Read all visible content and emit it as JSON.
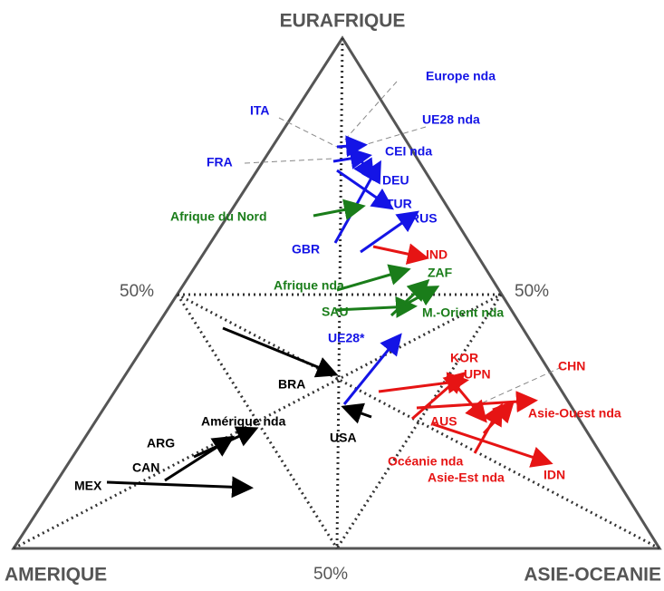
{
  "corners": {
    "top": "EURAFRIQUE",
    "left": "AMERIQUE",
    "right": "ASIE-OCEANIE"
  },
  "percent_labels": [
    "50%",
    "50%",
    "50%"
  ],
  "labels": [
    "Europe nda",
    "ITA",
    "UE28  nda",
    "FRA",
    "CEI nda",
    "DEU",
    "TUR",
    "Afrique du Nord",
    "RUS",
    "GBR",
    "IND",
    "Afrique nda",
    "ZAF",
    "SAU",
    "M.-Orient nda",
    "UE28*",
    "KOR",
    "CHN",
    "UPN",
    "BRA",
    "Asie-Ouest nda",
    "Amérique nda",
    "AUS",
    "USA",
    "ARG",
    "Océanie nda",
    "CAN",
    "IDN",
    "Asie-Est nda",
    "MEX"
  ]
}
